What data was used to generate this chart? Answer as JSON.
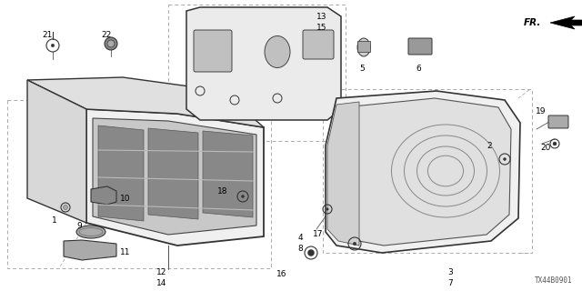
{
  "bg_color": "#ffffff",
  "diagram_code": "TX44B0901",
  "fig_width": 6.4,
  "fig_height": 3.2,
  "dpi": 100,
  "font_size_label": 6.5
}
